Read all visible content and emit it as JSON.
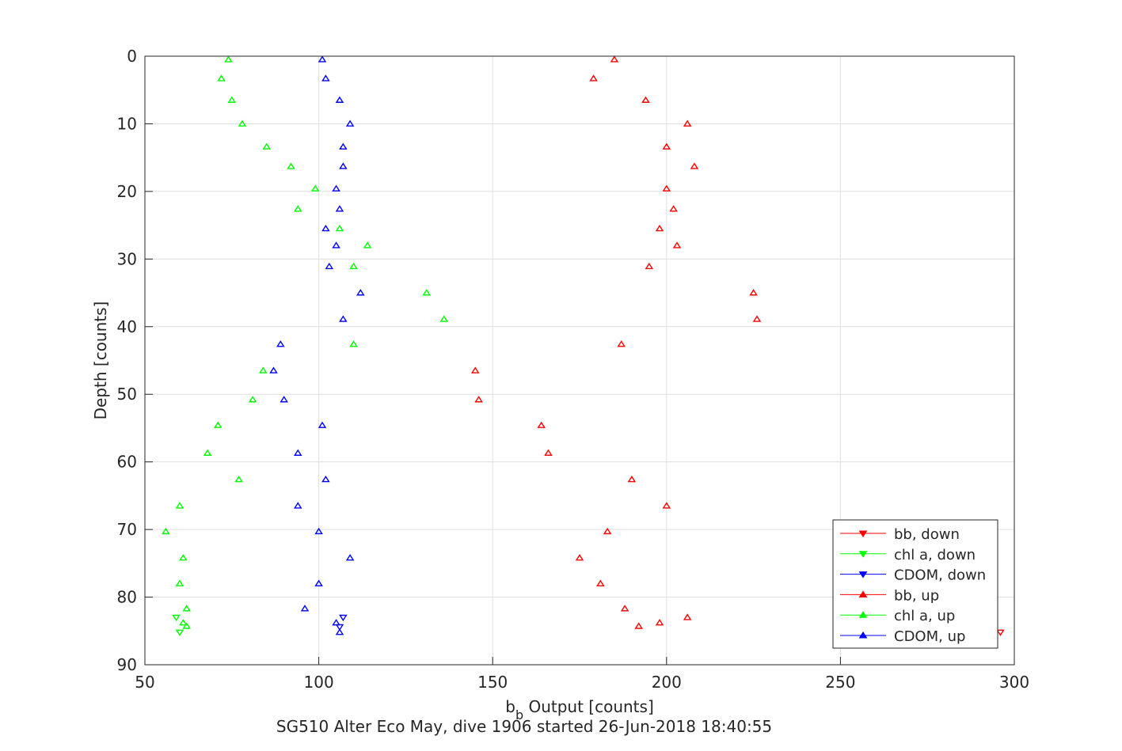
{
  "chart_data": {
    "type": "scatter",
    "xlabel_main": "b",
    "xlabel_sub": "b",
    "xlabel_rest": " Output [counts]",
    "ylabel": "Depth [counts]",
    "title_bottom": "SG510 Alter Eco May, dive 1906 started 26-Jun-2018 18:40:55",
    "xlim": [
      50,
      300
    ],
    "ylim": [
      0,
      90
    ],
    "y_reversed": true,
    "grid": true,
    "x_ticks": [
      50,
      100,
      150,
      200,
      250,
      300
    ],
    "y_ticks": [
      0,
      10,
      20,
      30,
      40,
      50,
      60,
      70,
      80,
      90
    ],
    "legend_position": "bottom-right",
    "series": [
      {
        "name": "bb, down",
        "color": "#ff0000",
        "marker": "triangle-down",
        "points": [
          [
            296,
            85.2
          ]
        ]
      },
      {
        "name": "chl a, down",
        "color": "#00ff00",
        "marker": "triangle-down",
        "points": [
          [
            59,
            83.0
          ],
          [
            60,
            85.2
          ]
        ]
      },
      {
        "name": "CDOM, down",
        "color": "#0000ff",
        "marker": "triangle-down",
        "points": [
          [
            107,
            83.0
          ],
          [
            106,
            84.4
          ]
        ]
      },
      {
        "name": "bb, up",
        "color": "#ff0000",
        "marker": "triangle-up",
        "points": [
          [
            185,
            0.5
          ],
          [
            179,
            3.3
          ],
          [
            194,
            6.5
          ],
          [
            206,
            10.0
          ],
          [
            200,
            13.4
          ],
          [
            208,
            16.3
          ],
          [
            200,
            19.6
          ],
          [
            202,
            22.6
          ],
          [
            198,
            25.5
          ],
          [
            203,
            28.0
          ],
          [
            195,
            31.1
          ],
          [
            225,
            35.0
          ],
          [
            226,
            38.9
          ],
          [
            187,
            42.6
          ],
          [
            145,
            46.5
          ],
          [
            146,
            50.8
          ],
          [
            164,
            54.6
          ],
          [
            166,
            58.7
          ],
          [
            190,
            62.6
          ],
          [
            200,
            66.5
          ],
          [
            183,
            70.3
          ],
          [
            175,
            74.2
          ],
          [
            181,
            78.0
          ],
          [
            188,
            81.7
          ],
          [
            206,
            83.0
          ],
          [
            198,
            83.8
          ],
          [
            192,
            84.3
          ]
        ]
      },
      {
        "name": "chl a, up",
        "color": "#00ff00",
        "marker": "triangle-up",
        "points": [
          [
            74,
            0.5
          ],
          [
            72,
            3.3
          ],
          [
            75,
            6.5
          ],
          [
            78,
            10.0
          ],
          [
            85,
            13.4
          ],
          [
            92,
            16.3
          ],
          [
            99,
            19.6
          ],
          [
            94,
            22.6
          ],
          [
            106,
            25.5
          ],
          [
            114,
            28.0
          ],
          [
            110,
            31.1
          ],
          [
            131,
            35.0
          ],
          [
            136,
            38.9
          ],
          [
            110,
            42.6
          ],
          [
            84,
            46.5
          ],
          [
            81,
            50.8
          ],
          [
            71,
            54.6
          ],
          [
            68,
            58.7
          ],
          [
            77,
            62.6
          ],
          [
            60,
            66.5
          ],
          [
            56,
            70.3
          ],
          [
            61,
            74.2
          ],
          [
            60,
            78.0
          ],
          [
            62,
            81.7
          ],
          [
            61,
            83.8
          ],
          [
            62,
            84.3
          ]
        ]
      },
      {
        "name": "CDOM, up",
        "color": "#0000ff",
        "marker": "triangle-up",
        "points": [
          [
            101,
            0.5
          ],
          [
            102,
            3.3
          ],
          [
            106,
            6.5
          ],
          [
            109,
            10.0
          ],
          [
            107,
            13.4
          ],
          [
            107,
            16.3
          ],
          [
            105,
            19.6
          ],
          [
            106,
            22.6
          ],
          [
            102,
            25.5
          ],
          [
            105,
            28.0
          ],
          [
            103,
            31.1
          ],
          [
            112,
            35.0
          ],
          [
            107,
            38.9
          ],
          [
            89,
            42.6
          ],
          [
            87,
            46.5
          ],
          [
            90,
            50.8
          ],
          [
            101,
            54.6
          ],
          [
            94,
            58.7
          ],
          [
            102,
            62.6
          ],
          [
            94,
            66.5
          ],
          [
            100,
            70.3
          ],
          [
            109,
            74.2
          ],
          [
            100,
            78.0
          ],
          [
            96,
            81.7
          ],
          [
            105,
            83.8
          ],
          [
            106,
            85.2
          ]
        ]
      }
    ]
  }
}
